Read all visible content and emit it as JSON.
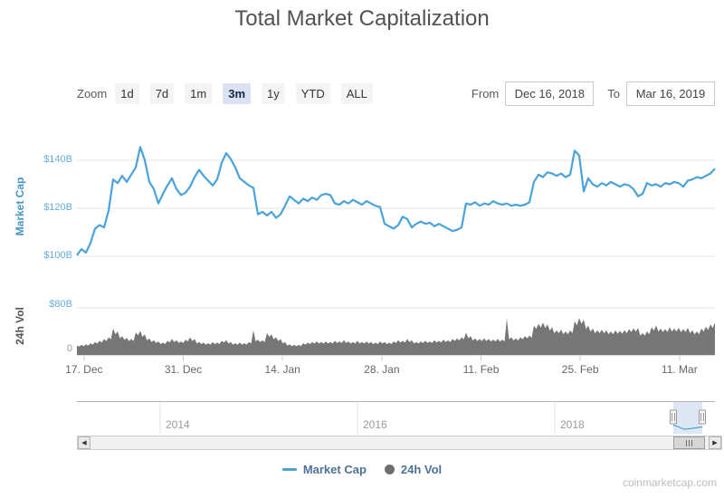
{
  "title": "Total Market Capitalization",
  "range_selector": {
    "zoom_label": "Zoom",
    "buttons": [
      {
        "label": "1d",
        "selected": false
      },
      {
        "label": "7d",
        "selected": false
      },
      {
        "label": "1m",
        "selected": false
      },
      {
        "label": "3m",
        "selected": true
      },
      {
        "label": "1y",
        "selected": false
      },
      {
        "label": "YTD",
        "selected": false
      },
      {
        "label": "ALL",
        "selected": false
      }
    ],
    "from_label": "From",
    "from_value": "Dec 16, 2018",
    "to_label": "To",
    "to_value": "Mar 16, 2019"
  },
  "legend": {
    "items": [
      {
        "label": "Market Cap",
        "marker": "line",
        "color": "#4aa3da"
      },
      {
        "label": "24h Vol",
        "marker": "circle",
        "color": "#6e6e6e"
      }
    ]
  },
  "navigator": {
    "year_labels": [
      "2014",
      "2016",
      "2018"
    ]
  },
  "credits": "coinmarketcap.com",
  "chart_data": [
    {
      "type": "line",
      "name": "Market Cap",
      "title": "Total Market Capitalization",
      "color": "#4aa3da",
      "ylabel": "Market Cap",
      "unit": "USD billions",
      "x_range": [
        "Dec 16, 2018",
        "Mar 16, 2019"
      ],
      "x_tick_labels": [
        "17. Dec",
        "31. Dec",
        "14. Jan",
        "28. Jan",
        "11. Feb",
        "25. Feb",
        "11. Mar"
      ],
      "y_tick_labels": [
        "$100B",
        "$120B",
        "$140B"
      ],
      "ylim": [
        95,
        152
      ],
      "grid": true,
      "values": [
        100.4,
        103,
        101.5,
        105.5,
        111.5,
        113,
        112,
        119,
        132,
        130.5,
        133.5,
        131,
        134,
        137,
        145.5,
        140,
        131,
        128,
        122,
        126,
        129.5,
        132.5,
        128,
        125.5,
        126.5,
        129,
        133,
        136,
        133.5,
        131.5,
        129.5,
        132,
        139,
        143,
        140.5,
        137,
        132.5,
        131,
        129.5,
        128.5,
        117.5,
        118.5,
        117,
        118.5,
        116,
        117.5,
        121,
        125,
        123.5,
        122,
        124,
        123,
        124.5,
        123.5,
        125.5,
        126,
        125.5,
        122,
        121.5,
        123,
        122,
        123.5,
        122.5,
        121.5,
        123,
        122,
        121,
        120.5,
        113.5,
        112.5,
        111.5,
        113,
        116.5,
        115.5,
        112,
        113.5,
        114.5,
        113.5,
        114,
        112.5,
        113.5,
        112.5,
        111.5,
        110.5,
        111,
        112,
        122,
        121.5,
        122.5,
        121,
        122,
        121.5,
        123,
        122,
        121.5,
        122,
        121,
        121.5,
        121,
        121.5,
        122.5,
        131,
        134,
        133,
        135,
        134.5,
        133.5,
        134.5,
        133,
        134,
        144,
        142,
        127,
        132.5,
        130,
        129,
        130.5,
        129.5,
        131,
        130,
        129,
        130,
        129.5,
        128,
        125,
        126,
        130.5,
        129.5,
        130,
        129,
        130.5,
        130,
        131,
        130.5,
        129,
        131.5,
        132,
        133,
        132.5,
        133.5,
        134.5,
        136.5
      ]
    },
    {
      "type": "area",
      "name": "24h Vol",
      "color": "#767676",
      "ylabel": "24h Vol",
      "unit": "USD billions",
      "x_range": [
        "Dec 16, 2018",
        "Mar 16, 2019"
      ],
      "y_tick_labels": [
        "0",
        "$80B"
      ],
      "ylim": [
        0,
        95
      ],
      "grid": true,
      "values": [
        16,
        17,
        18,
        20,
        22,
        24,
        27,
        30,
        45,
        40,
        32,
        29,
        27,
        38,
        41,
        35,
        28,
        25,
        23,
        21,
        24,
        27,
        25,
        23,
        26,
        30,
        27,
        22,
        21,
        20,
        22,
        21,
        24,
        25,
        22,
        20,
        21,
        20,
        22,
        42,
        26,
        25,
        37,
        35,
        30,
        27,
        22,
        18,
        17,
        17,
        20,
        21,
        22,
        23,
        22,
        23,
        22,
        24,
        23,
        25,
        23,
        22,
        24,
        22,
        23,
        22,
        21,
        23,
        22,
        21,
        23,
        25,
        24,
        27,
        25,
        22,
        23,
        24,
        23,
        25,
        24,
        26,
        25,
        27,
        28,
        30,
        38,
        32,
        28,
        27,
        28,
        27,
        26,
        27,
        26,
        62,
        30,
        28,
        30,
        32,
        33,
        50,
        53,
        55,
        52,
        47,
        42,
        43,
        40,
        42,
        57,
        63,
        60,
        50,
        45,
        42,
        43,
        42,
        40,
        42,
        41,
        42,
        44,
        45,
        46,
        37,
        40,
        47,
        50,
        45,
        44,
        47,
        45,
        46,
        44,
        46,
        42,
        40,
        45,
        48,
        52,
        55
      ]
    }
  ]
}
